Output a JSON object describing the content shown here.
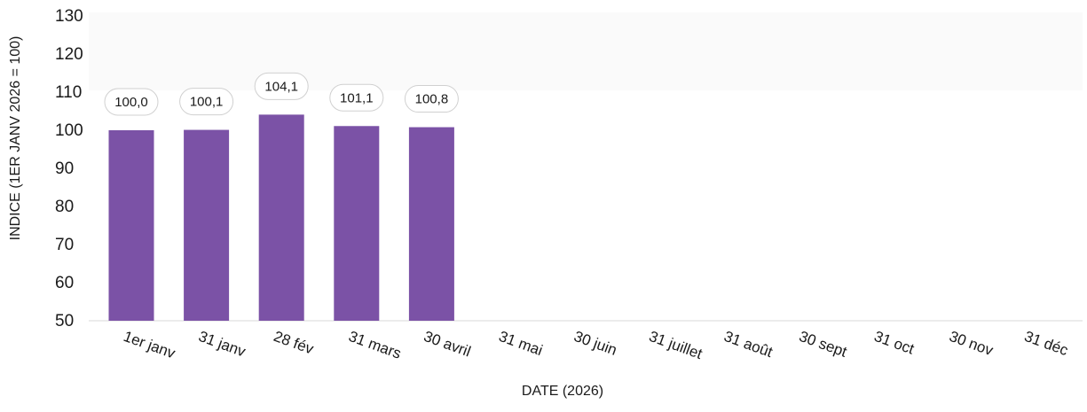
{
  "colors": {
    "bar": "#7b52a6",
    "axis": "#d9d9d9",
    "plot_band": "#fafafa",
    "text": "#1a1a1a",
    "label_border": "#d0d0d0"
  },
  "chart_data": {
    "type": "bar",
    "title": "",
    "xlabel": "DATE (2026)",
    "ylabel": "INDICE (1ER JANV 2026 = 100)",
    "ylim": [
      50,
      130
    ],
    "yticks": [
      50,
      60,
      70,
      80,
      90,
      100,
      110,
      120,
      130
    ],
    "grid": false,
    "categories": [
      "1er janv",
      "31 janv",
      "28 fév",
      "31 mars",
      "30 avril",
      "31 mai",
      "30 juin",
      "31 juillet",
      "31 août",
      "30 sept",
      "31 oct",
      "30 nov",
      "31 déc"
    ],
    "values": [
      100.0,
      100.1,
      104.1,
      101.1,
      100.8,
      null,
      null,
      null,
      null,
      null,
      null,
      null,
      null
    ],
    "data_labels": [
      "100,0",
      "100,1",
      "104,1",
      "101,1",
      "100,8",
      "",
      "",
      "",
      "",
      "",
      "",
      "",
      ""
    ]
  }
}
